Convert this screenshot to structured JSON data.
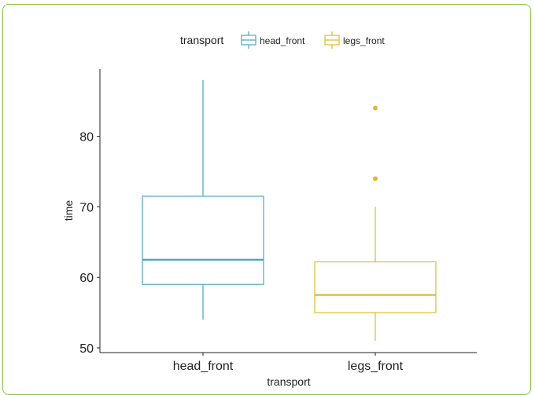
{
  "chart_data": {
    "type": "box",
    "xlabel": "transport",
    "ylabel": "time",
    "ylim": [
      49,
      90
    ],
    "yticks": [
      50,
      60,
      70,
      80
    ],
    "legend": {
      "title": "transport",
      "position": "top"
    },
    "categories": [
      "head_front",
      "legs_front"
    ],
    "series": [
      {
        "name": "head_front",
        "color": "#4aa6bd",
        "min": 54,
        "q1": 59,
        "median": 62.5,
        "q3": 71.5,
        "max": 88,
        "outliers": []
      },
      {
        "name": "legs_front",
        "color": "#e0b934",
        "min": 51,
        "q1": 55,
        "median": 57.5,
        "q3": 62.2,
        "max": 70,
        "outliers": [
          74,
          84
        ]
      }
    ]
  }
}
